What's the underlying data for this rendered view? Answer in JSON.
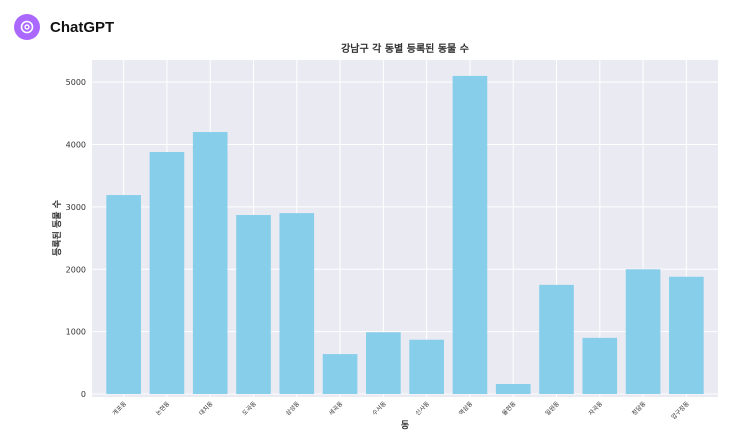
{
  "header": {
    "title": "ChatGPT"
  },
  "chart_data": {
    "type": "bar",
    "title": "강남구 각 동별 등록된 동물 수",
    "x_label": "동",
    "y_label": "등록된 동물 수",
    "categories": [
      "개포동",
      "논현동",
      "대치동",
      "도곡동",
      "삼성동",
      "세곡동",
      "수서동",
      "신사동",
      "역삼동",
      "율현동",
      "일원동",
      "자곡동",
      "청담동",
      "압구정동"
    ],
    "values": [
      3190,
      3880,
      4200,
      2870,
      2900,
      640,
      990,
      870,
      5100,
      160,
      1750,
      900,
      2000,
      1880
    ],
    "color": "#87ceeb",
    "ylim": [
      0,
      5355
    ],
    "yticks": [
      0,
      1000,
      2000,
      3000,
      4000,
      5000
    ],
    "grid": true
  }
}
